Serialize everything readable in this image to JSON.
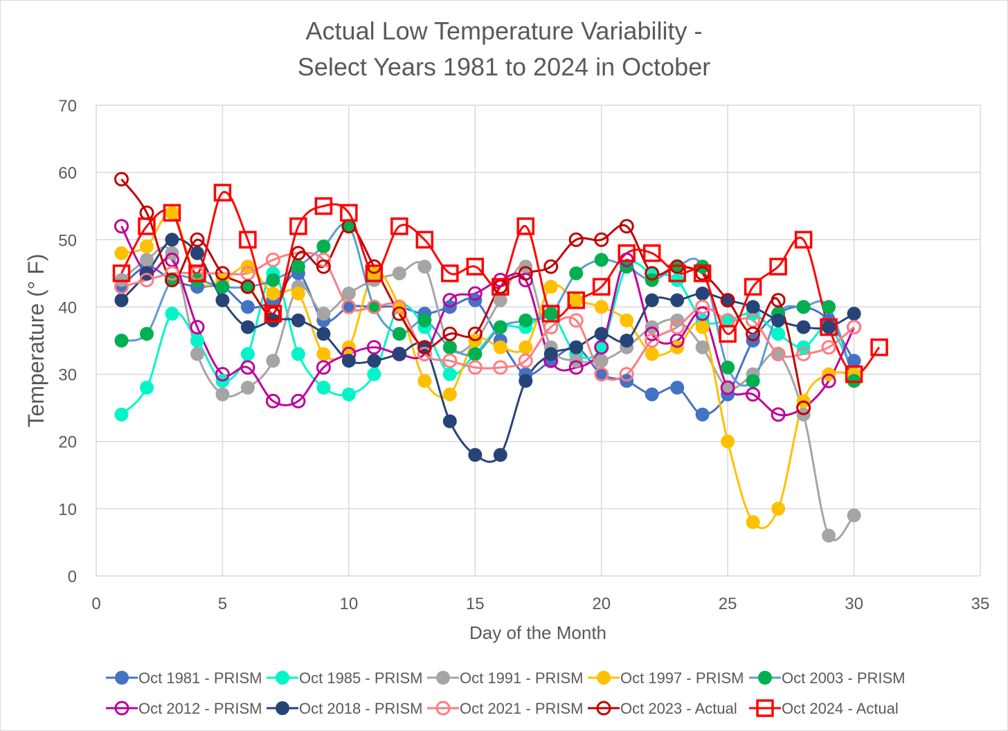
{
  "chart_data": {
    "type": "line",
    "title_lines": [
      "Actual Low Temperature Variability -",
      "Select Years 1981 to 2024 in October"
    ],
    "xlabel": "Day of the Month",
    "ylabel": "Temperature (° F)",
    "xlim": [
      0,
      35
    ],
    "ylim": [
      0,
      70
    ],
    "xticks": [
      0,
      5,
      10,
      15,
      20,
      25,
      30,
      35
    ],
    "yticks": [
      0,
      10,
      20,
      30,
      40,
      50,
      60,
      70
    ],
    "grid": true,
    "legend_position": "bottom",
    "series": [
      {
        "name": "Oct 1981 - PRISM",
        "color": "#4472C4",
        "marker": "filled-circle",
        "values": [
          43,
          46,
          44,
          43,
          43,
          40,
          41,
          45,
          38,
          40,
          40,
          40,
          39,
          40,
          41,
          35,
          30,
          32,
          34,
          30,
          29,
          27,
          28,
          24,
          27,
          35,
          39,
          40,
          38,
          32
        ]
      },
      {
        "name": "Oct 1985 - PRISM",
        "color": "#00F5C8",
        "marker": "filled-circle",
        "values": [
          24,
          28,
          39,
          35,
          29,
          33,
          45,
          33,
          28,
          27,
          30,
          40,
          37,
          30,
          33,
          37,
          37,
          39,
          33,
          34,
          46,
          45,
          44,
          38,
          38,
          39,
          36,
          34,
          37,
          30
        ]
      },
      {
        "name": "Oct 1991 - PRISM",
        "color": "#A5A5A5",
        "marker": "filled-circle",
        "values": [
          44,
          47,
          48,
          33,
          27,
          28,
          32,
          43,
          39,
          42,
          44,
          45,
          46,
          34,
          35,
          41,
          46,
          34,
          32,
          32,
          34,
          37,
          38,
          34,
          28,
          30,
          33,
          24,
          6,
          9
        ]
      },
      {
        "name": "Oct 1997 - PRISM",
        "color": "#FFC000",
        "marker": "filled-circle",
        "values": [
          48,
          49,
          54,
          44,
          44,
          46,
          42,
          42,
          33,
          34,
          45,
          40,
          29,
          27,
          35,
          34,
          34,
          43,
          41,
          40,
          38,
          33,
          34,
          37,
          20,
          8,
          10,
          26,
          30,
          30
        ]
      },
      {
        "name": "Oct 2003 - PRISM",
        "color": "#00B050",
        "marker": "filled-circle",
        "line_color": "#5B9BD5",
        "values": [
          35,
          36,
          44,
          44,
          43,
          43,
          44,
          46,
          49,
          52,
          40,
          36,
          38,
          34,
          33,
          37,
          38,
          39,
          45,
          47,
          46,
          44,
          46,
          46,
          31,
          29,
          39,
          40,
          40,
          29
        ]
      },
      {
        "name": "Oct 2012 - PRISM",
        "color": "#C0009A",
        "marker": "open-circle",
        "values": [
          52,
          45,
          47,
          37,
          30,
          31,
          26,
          26,
          31,
          33,
          34,
          33,
          33,
          41,
          42,
          44,
          44,
          32,
          31,
          34,
          47,
          36,
          35,
          39,
          28,
          27,
          24,
          25,
          29,
          37
        ]
      },
      {
        "name": "Oct 2018 - PRISM",
        "color": "#264478",
        "marker": "filled-circle",
        "values": [
          41,
          45,
          50,
          48,
          41,
          37,
          38,
          38,
          36,
          32,
          32,
          33,
          34,
          23,
          18,
          18,
          29,
          33,
          34,
          36,
          35,
          41,
          41,
          42,
          41,
          40,
          38,
          37,
          37,
          39
        ]
      },
      {
        "name": "Oct 2021 - PRISM",
        "color": "#FF7C80",
        "marker": "open-circle",
        "values": [
          43,
          44,
          45,
          45,
          45,
          45,
          47,
          48,
          47,
          40,
          40,
          40,
          33,
          32,
          31,
          31,
          32,
          37,
          38,
          30,
          30,
          35,
          37,
          40,
          38,
          38,
          33,
          33,
          34,
          37
        ]
      },
      {
        "name": "Oct 2023 - Actual",
        "color": "#C00000",
        "marker": "open-circle",
        "values": [
          59,
          54,
          44,
          50,
          45,
          43,
          39,
          48,
          46,
          52,
          46,
          39,
          34,
          36,
          36,
          43,
          45,
          46,
          50,
          50,
          52,
          45,
          46,
          45,
          41,
          36,
          41,
          25
        ]
      },
      {
        "name": "Oct 2024 - Actual",
        "color": "#FF0000",
        "marker": "open-square",
        "values": [
          45,
          52,
          54,
          45,
          57,
          50,
          39,
          52,
          55,
          54,
          45,
          52,
          50,
          45,
          46,
          43,
          52,
          39,
          41,
          43,
          48,
          48,
          45,
          45,
          36,
          43,
          46,
          50,
          37,
          30,
          34
        ]
      }
    ]
  }
}
